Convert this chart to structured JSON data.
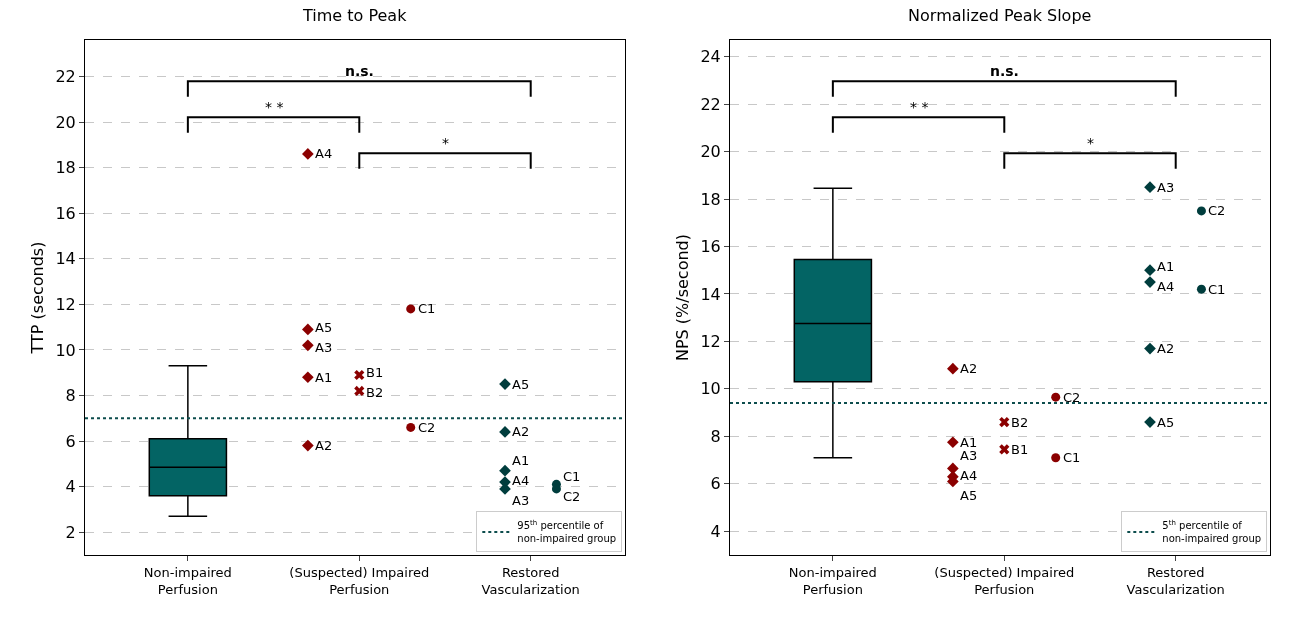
{
  "chart_data": [
    {
      "type": "scatter",
      "title": "Time to Peak",
      "ylabel": "TTP (seconds)",
      "categories": [
        "Non-impaired\nPerfusion",
        "(Suspected) Impaired\nPerfusion",
        "Restored\nVascularization"
      ],
      "ylim": [
        1,
        23.6
      ],
      "yticks": [
        2,
        4,
        6,
        8,
        10,
        12,
        14,
        16,
        18,
        20,
        22
      ],
      "grid": "y",
      "legend": "bottom right",
      "series": [
        {
          "type": "box",
          "color": "#036464",
          "x": [
            "Non-impaired\nPerfusion"
          ],
          "boxes": [
            {
              "low": 2.7,
              "q1": 3.6,
              "median": 4.85,
              "q3": 6.1,
              "high": 9.3
            }
          ]
        },
        {
          "color": "#8b0000",
          "marker": "diamond",
          "x": [
            "(Suspected) Impaired\nPerfusion",
            "(Suspected) Impaired\nPerfusion",
            "(Suspected) Impaired\nPerfusion",
            "(Suspected) Impaired\nPerfusion",
            "(Suspected) Impaired\nPerfusion"
          ],
          "values": [
            18.6,
            10.9,
            10.2,
            8.8,
            5.8
          ],
          "value_labels": [
            "A4",
            "A5",
            "A3",
            "A1",
            "A2"
          ]
        },
        {
          "color": "#8b0000",
          "marker": "cross",
          "x": [
            "(Suspected) Impaired\nPerfusion",
            "(Suspected) Impaired\nPerfusion"
          ],
          "values": [
            8.9,
            8.2
          ],
          "value_labels": [
            "B1",
            "B2"
          ]
        },
        {
          "color": "#8b0000",
          "marker": "circle",
          "x": [
            "(Suspected) Impaired\nPerfusion",
            "(Suspected) Impaired\nPerfusion"
          ],
          "values": [
            11.8,
            6.6
          ],
          "value_labels": [
            "C1",
            "C2"
          ]
        },
        {
          "color": "#003d3d",
          "marker": "diamond",
          "x": [
            "Restored\nVascularization",
            "Restored\nVascularization",
            "Restored\nVascularization",
            "Restored\nVascularization",
            "Restored\nVascularization"
          ],
          "values": [
            8.5,
            6.4,
            4.7,
            4.2,
            3.9
          ],
          "value_labels": [
            "A5",
            "A2",
            "A1",
            "A4",
            "A3"
          ]
        },
        {
          "color": "#003d3d",
          "marker": "circle",
          "x": [
            "Restored\nVascularization",
            "Restored\nVascularization"
          ],
          "values": [
            4.1,
            3.9
          ],
          "value_labels": [
            "C1",
            "C2"
          ]
        }
      ],
      "ref_lines": [
        {
          "axis": "y",
          "value": 7.0,
          "label": "95$^{th}$ percentile of\nnon-impaired group",
          "color": "#0d4d4d",
          "line_style": "dotted"
        }
      ],
      "annotations": [
        "* *",
        "*",
        "n.s."
      ]
    },
    {
      "type": "scatter",
      "title": "Normalized Peak Slope",
      "ylabel": "NPS (%/second)",
      "categories": [
        "Non-impaired\nPerfusion",
        "(Suspected) Impaired\nPerfusion",
        "Restored\nVascularization"
      ],
      "ylim": [
        3,
        24.7
      ],
      "yticks": [
        4,
        6,
        8,
        10,
        12,
        14,
        16,
        18,
        20,
        22,
        24
      ],
      "grid": "y",
      "legend": "bottom right",
      "series": [
        {
          "type": "box",
          "color": "#036464",
          "x": [
            "Non-impaired\nPerfusion"
          ],
          "boxes": [
            {
              "low": 7.1,
              "q1": 10.3,
              "median": 12.75,
              "q3": 15.45,
              "high": 18.45
            }
          ]
        },
        {
          "color": "#8b0000",
          "marker": "diamond",
          "x": [
            "(Suspected) Impaired\nPerfusion",
            "(Suspected) Impaired\nPerfusion",
            "(Suspected) Impaired\nPerfusion",
            "(Suspected) Impaired\nPerfusion",
            "(Suspected) Impaired\nPerfusion"
          ],
          "values": [
            10.85,
            7.75,
            6.65,
            6.3,
            6.1
          ],
          "value_labels": [
            "A2",
            "A1",
            "A3",
            "A4",
            "A5"
          ]
        },
        {
          "color": "#8b0000",
          "marker": "cross",
          "x": [
            "(Suspected) Impaired\nPerfusion",
            "(Suspected) Impaired\nPerfusion"
          ],
          "values": [
            8.6,
            7.45
          ],
          "value_labels": [
            "B2",
            "B1"
          ]
        },
        {
          "color": "#8b0000",
          "marker": "circle",
          "x": [
            "(Suspected) Impaired\nPerfusion",
            "(Suspected) Impaired\nPerfusion"
          ],
          "values": [
            9.65,
            7.1
          ],
          "value_labels": [
            "C2",
            "C1"
          ]
        },
        {
          "color": "#003d3d",
          "marker": "diamond",
          "x": [
            "Restored\nVascularization",
            "Restored\nVascularization",
            "Restored\nVascularization",
            "Restored\nVascularization",
            "Restored\nVascularization"
          ],
          "values": [
            18.5,
            15.0,
            14.5,
            11.7,
            8.6
          ],
          "value_labels": [
            "A3",
            "A1",
            "A4",
            "A2",
            "A5"
          ]
        },
        {
          "color": "#003d3d",
          "marker": "circle",
          "x": [
            "Restored\nVascularization",
            "Restored\nVascularization"
          ],
          "values": [
            17.5,
            14.2
          ],
          "value_labels": [
            "C2",
            "C1"
          ]
        }
      ],
      "ref_lines": [
        {
          "axis": "y",
          "value": 9.4,
          "label": "5$^{th}$ percentile of\nnon-impaired group",
          "color": "#0d4d4d",
          "line_style": "dotted"
        }
      ],
      "annotations": [
        "* *",
        "*",
        "n.s."
      ]
    }
  ]
}
